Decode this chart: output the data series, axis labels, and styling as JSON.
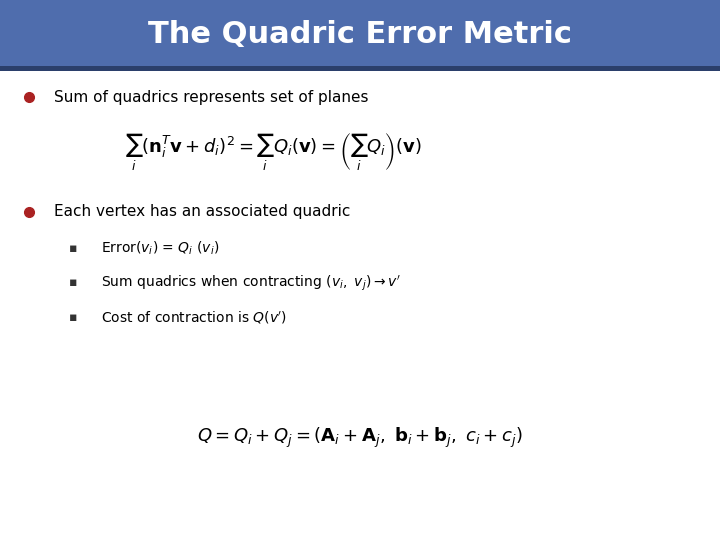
{
  "title": "The Quadric Error Metric",
  "title_bg_color": "#4F6DAD",
  "title_text_color": "#FFFFFF",
  "content_bg_color": "#FFFFFF",
  "bullet_color": "#AA2222",
  "bullet1_text": "Sum of quadrics represents set of planes",
  "formula1": "$\\sum_{i}(\\mathbf{n}_i^T\\mathbf{v}+d_i)^2 = \\sum_{i}Q_i(\\mathbf{v}) = \\left(\\sum_{i}Q_i\\right)(\\mathbf{v})$",
  "bullet2_text": "Each vertex has an associated quadric",
  "sub1": "Error($v_i$) = $Q_i$ ($v_i$)",
  "sub2": "Sum quadrics when contracting $(v_i,\\ v_j) \\rightarrow v'$",
  "sub3": "Cost of contraction is $Q(v')$",
  "formula2": "$Q = Q_i + Q_j = (\\mathbf{A}_i + \\mathbf{A}_j,\\ \\mathbf{b}_i + \\mathbf{b}_j,\\ c_i + c_j)$",
  "text_color": "#000000",
  "shadow_color": "#2B3F6B",
  "sub_bullet": "▪",
  "title_fontsize": 22,
  "body_fontsize": 11,
  "formula_fontsize": 13,
  "sub_fontsize": 10
}
